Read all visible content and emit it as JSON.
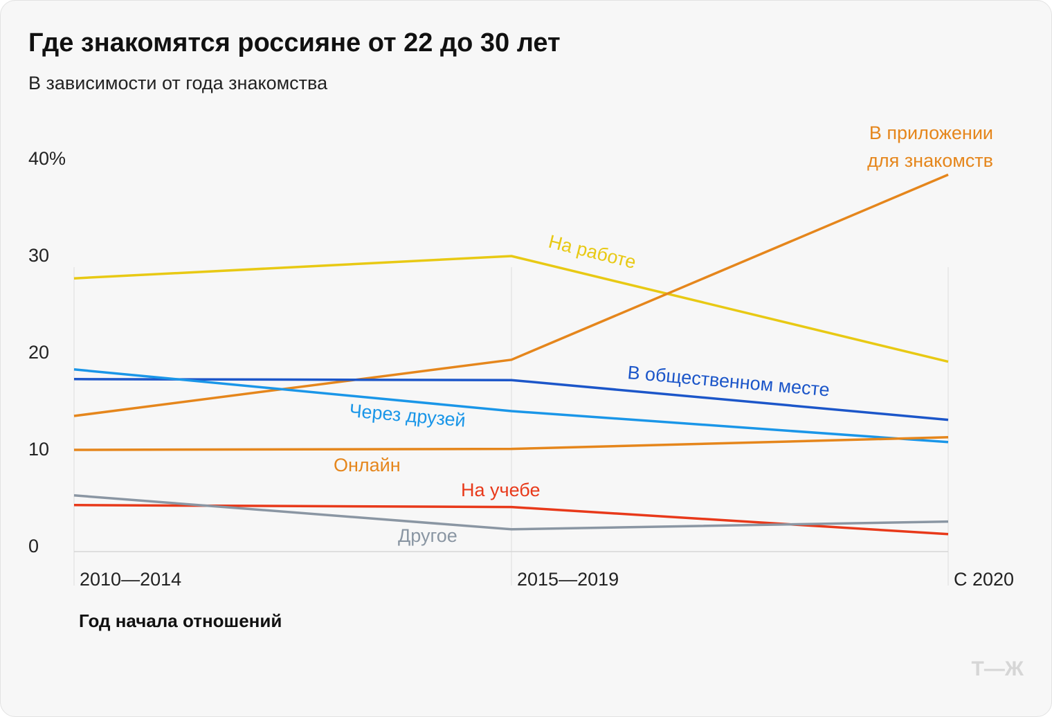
{
  "chart_data": {
    "type": "line",
    "title": "Где знакомятся россияне от 22 до 30 лет",
    "subtitle": "В зависимости от года знакомства",
    "xlabel": "Год начала отношений",
    "ylabel": "",
    "categories": [
      "2010—2014",
      "2015—2019",
      "С 2020"
    ],
    "yticks": [
      "0",
      "10",
      "20",
      "30",
      "40%"
    ],
    "ylim": [
      0,
      40
    ],
    "grid": true,
    "series": [
      {
        "name": "На работе",
        "color": "#e8c914",
        "values": [
          28.2,
          30.5,
          19.6
        ]
      },
      {
        "name": "В приложении для знакомств",
        "name_lines": [
          "В приложении",
          "для знакомств"
        ],
        "color": "#e5861c",
        "values": [
          14.0,
          19.8,
          38.9
        ]
      },
      {
        "name": "В общественном месте",
        "color": "#1c56c9",
        "values": [
          17.8,
          17.7,
          13.6
        ]
      },
      {
        "name": "Через друзей",
        "color": "#1a96e8",
        "values": [
          18.8,
          14.5,
          11.3
        ]
      },
      {
        "name": "Онлайн",
        "color": "#e5861c",
        "values": [
          10.5,
          10.6,
          11.8
        ]
      },
      {
        "name": "На учебе",
        "color": "#e8391a",
        "values": [
          4.8,
          4.6,
          1.8
        ]
      },
      {
        "name": "Другое",
        "color": "#8a96a3",
        "values": [
          5.8,
          2.3,
          3.1
        ]
      }
    ]
  },
  "logo": "Т—Ж"
}
